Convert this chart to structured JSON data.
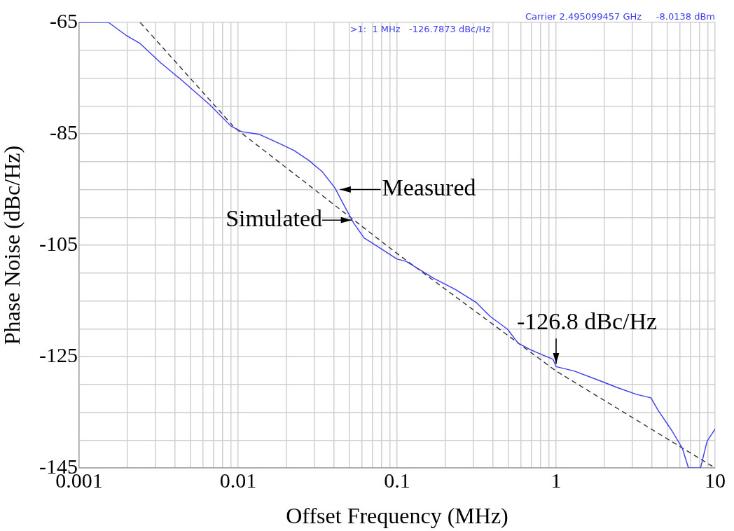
{
  "chart_data": {
    "type": "line",
    "xlabel": "Offset Frequency (MHz)",
    "ylabel": "Phase Noise (dBc/Hz)",
    "log": "x",
    "grid": true,
    "legend": false,
    "marker": "none",
    "xlim": [
      0.001,
      10
    ],
    "ylim": [
      -145,
      -65
    ],
    "xticks": [
      0.001,
      {
        "value": 0.002,
        "label": null
      },
      {
        "value": 0.003,
        "label": null
      },
      {
        "value": 0.004,
        "label": null
      },
      {
        "value": 0.005,
        "label": null
      },
      {
        "value": 0.006,
        "label": null
      },
      {
        "value": 0.007,
        "label": null
      },
      {
        "value": 0.008,
        "label": null
      },
      {
        "value": 0.009,
        "label": null
      },
      0.01,
      {
        "value": 0.02,
        "label": null
      },
      {
        "value": 0.03,
        "label": null
      },
      {
        "value": 0.04,
        "label": null
      },
      {
        "value": 0.05,
        "label": null
      },
      {
        "value": 0.06,
        "label": null
      },
      {
        "value": 0.07,
        "label": null
      },
      {
        "value": 0.08,
        "label": null
      },
      {
        "value": 0.09,
        "label": null
      },
      0.1,
      {
        "value": 0.2,
        "label": null
      },
      {
        "value": 0.3,
        "label": null
      },
      {
        "value": 0.4,
        "label": null
      },
      {
        "value": 0.5,
        "label": null
      },
      {
        "value": 0.6,
        "label": null
      },
      {
        "value": 0.7,
        "label": null
      },
      {
        "value": 0.8,
        "label": null
      },
      {
        "value": 0.9,
        "label": null
      },
      1,
      {
        "value": 2,
        "label": null
      },
      {
        "value": 3,
        "label": null
      },
      {
        "value": 4,
        "label": null
      },
      {
        "value": 5,
        "label": null
      },
      {
        "value": 6,
        "label": null
      },
      {
        "value": 7,
        "label": null
      },
      {
        "value": 8,
        "label": null
      },
      {
        "value": 9,
        "label": null
      },
      10
    ],
    "yticks": [
      -145,
      {
        "value": -140,
        "label": null
      },
      {
        "value": -135,
        "label": null
      },
      {
        "value": -130,
        "label": null
      },
      -125,
      {
        "value": -120,
        "label": null
      },
      {
        "value": -115,
        "label": null
      },
      {
        "value": -110,
        "label": null
      },
      -105,
      {
        "value": -100,
        "label": null
      },
      {
        "value": -95,
        "label": null
      },
      {
        "value": -90,
        "label": null
      },
      -85,
      {
        "value": -80,
        "label": null
      },
      {
        "value": -75,
        "label": null
      },
      {
        "value": -70,
        "label": null
      },
      -65
    ],
    "series": [
      {
        "color": "#3c3cf0",
        "line_style": "solid",
        "x": [
          0.001,
          0.00153,
          0.00197,
          0.00242,
          0.00327,
          0.00443,
          0.00665,
          0.009,
          0.0105,
          0.0136,
          0.0184,
          0.0225,
          0.0276,
          0.0338,
          0.0406,
          0.0457,
          0.0532,
          0.062,
          0.076,
          0.1,
          0.114,
          0.171,
          0.231,
          0.315,
          0.385,
          0.495,
          0.577,
          0.706,
          0.956,
          1,
          1.3,
          1.95,
          2.39,
          3.22,
          3.95,
          4.37,
          5.35,
          6.23,
          6.8,
          8.1,
          8.9,
          10
        ],
        "values": [
          -65,
          -65,
          -67.3,
          -68.8,
          -72.3,
          -75.4,
          -79.8,
          -83.6,
          -84.6,
          -85.1,
          -86.8,
          -88,
          -89.7,
          -91.8,
          -94.7,
          -97.5,
          -101,
          -103.7,
          -105.3,
          -107.5,
          -107.9,
          -111,
          -112.9,
          -115.3,
          -117.8,
          -120.1,
          -122.6,
          -123.9,
          -125.5,
          -126.8,
          -127.6,
          -129.5,
          -130.5,
          -131.8,
          -132.4,
          -134.6,
          -138.3,
          -141.5,
          -145,
          -145,
          -140.2,
          -138
        ]
      },
      {
        "color": "#333333",
        "line_style": "dashed",
        "x": [
          0.00242,
          0.0095,
          0.1,
          1,
          10
        ],
        "values": [
          -65,
          -83.9,
          -106.5,
          -127.6,
          -145
        ]
      }
    ],
    "annotations": [
      {
        "text": "Measured",
        "x": 0.042,
        "y": -95
      },
      {
        "text": "Simulated",
        "x": 0.055,
        "y": -101
      },
      {
        "text": "-126.8 dBc/Hz",
        "x": 1,
        "y": -126.8
      },
      "Carrier 2.495099457 GHz     -8.0138 dBm",
      ">1:  1 MHz   -126.7873 dBc/Hz"
    ]
  }
}
